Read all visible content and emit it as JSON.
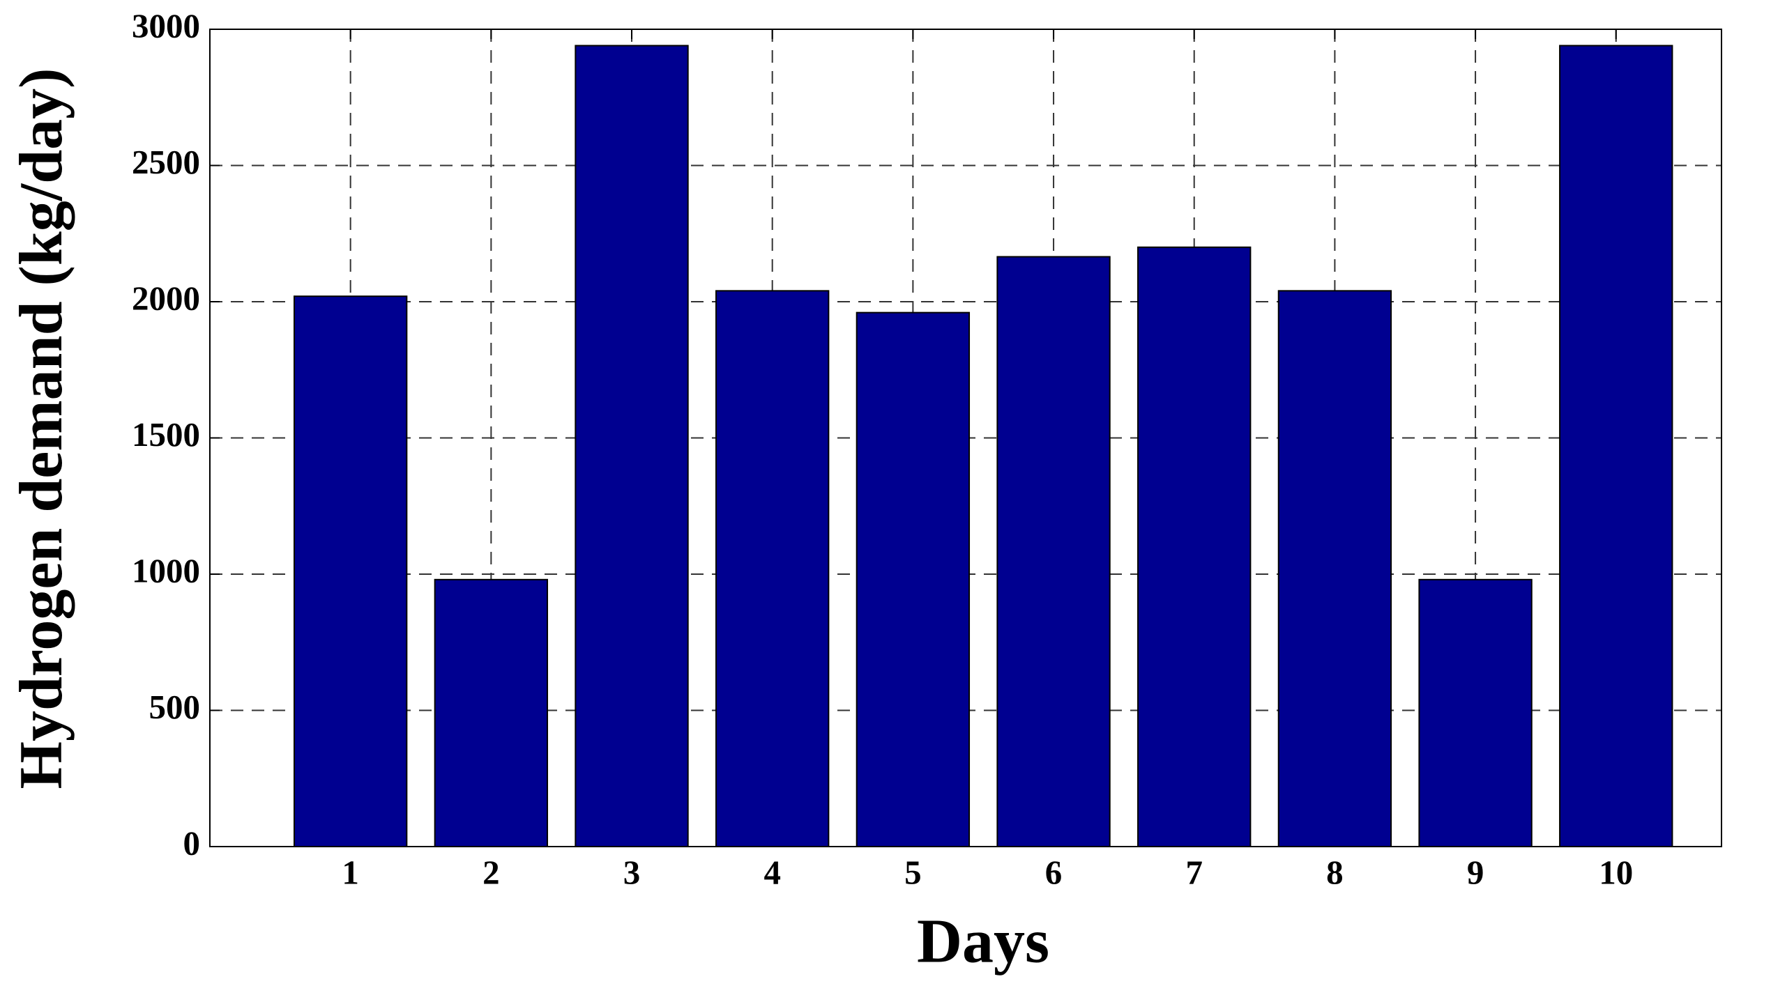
{
  "chart_data": {
    "type": "bar",
    "xlabel": "Days",
    "ylabel": "Hydrogen demand  (kg/day)",
    "x": [
      1,
      2,
      3,
      4,
      5,
      6,
      7,
      8,
      9,
      10
    ],
    "values": [
      2020,
      980,
      2940,
      2040,
      1960,
      2165,
      2200,
      2040,
      980,
      2940
    ],
    "color": "#000090",
    "xlim": [
      0,
      10.75
    ],
    "xticks": [
      1,
      2,
      3,
      4,
      5,
      6,
      7,
      8,
      9,
      10
    ],
    "ylim": [
      0,
      3000
    ],
    "yticks": [
      0,
      500,
      1000,
      1500,
      2000,
      2500,
      3000
    ],
    "grid": true
  }
}
